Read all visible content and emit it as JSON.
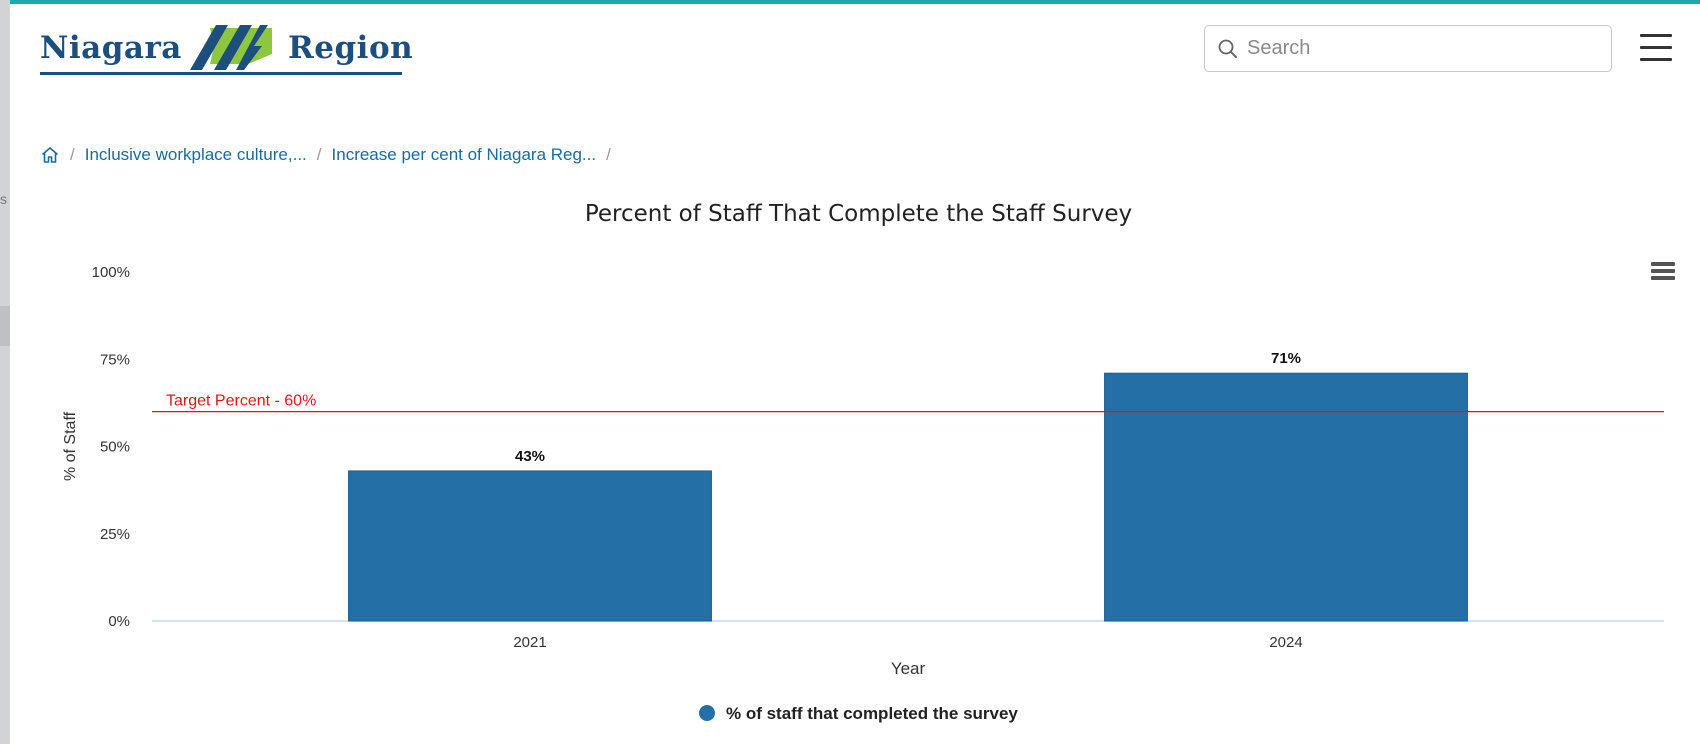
{
  "left_strip": {
    "fragment": "s"
  },
  "header": {
    "logo": {
      "word1": "Niagara",
      "word2": "Region"
    },
    "search": {
      "placeholder": "Search",
      "value": ""
    },
    "icons": {
      "search": "search-icon",
      "menu": "hamburger-menu-icon"
    }
  },
  "breadcrumb": {
    "home_icon": "home-icon",
    "items": [
      "Inclusive workplace culture,...",
      "Increase per cent of Niagara Reg..."
    ],
    "separator": "/"
  },
  "colors": {
    "accent_bar": "#1fa9ab",
    "brand_navy": "#1c4f7e",
    "brand_green": "#8dc63f",
    "link": "#1a6b9a",
    "bar": "#236fa6",
    "target_line": "#e0141e"
  },
  "chart_data": {
    "type": "bar",
    "title": "Percent of Staff That Complete the Staff Survey",
    "xlabel": "Year",
    "ylabel": "% of Staff",
    "categories": [
      "2021",
      "2024"
    ],
    "series": [
      {
        "name": "% of staff that completed the survey",
        "values": [
          43,
          71
        ],
        "labels": [
          "43%",
          "71%"
        ],
        "color": "#236fa6"
      }
    ],
    "ylim": [
      0,
      100
    ],
    "yticks": [
      0,
      25,
      50,
      75,
      100
    ],
    "ytick_labels": [
      "0%",
      "25%",
      "50%",
      "75%",
      "100%"
    ],
    "target": {
      "value": 60,
      "label": "Target Percent - 60%",
      "color": "#e0141e"
    },
    "legend_position": "bottom",
    "grid": false
  },
  "export_menu": {
    "icon": "export-menu-icon"
  }
}
